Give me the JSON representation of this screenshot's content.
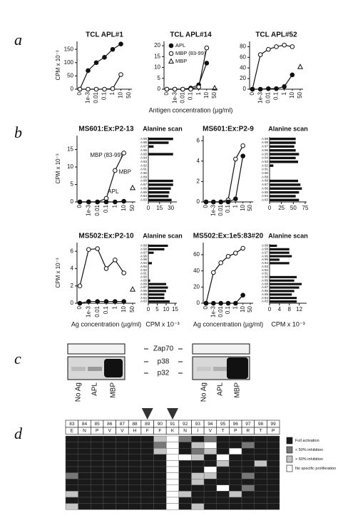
{
  "panel_labels": [
    "a",
    "b",
    "c",
    "d"
  ],
  "chart_data": [
    {
      "type": "line",
      "title": "TCL APL#1",
      "ylabel": "CPM x 10⁻³",
      "categories": [
        "0",
        "1e-3",
        "0.01",
        "0.1",
        "1",
        "10",
        "50"
      ],
      "ylim": [
        0,
        180
      ],
      "yticks": [
        0,
        50,
        100,
        150
      ],
      "series": [
        {
          "marker": "filled-circle",
          "color": "#111111",
          "values": [
            0,
            70,
            100,
            120,
            150,
            170,
            null
          ]
        },
        {
          "marker": "open-circle",
          "color": "#111111",
          "values": [
            0,
            0,
            0,
            0,
            2,
            55,
            null
          ]
        }
      ]
    },
    {
      "type": "line",
      "title": "TCL APL#14",
      "xlabel": "Antigen concentration (µg/ml)",
      "legend": true,
      "categories": [
        "0",
        "1e-3",
        "0.01",
        "0.1",
        "1",
        "10",
        "50"
      ],
      "ylim": [
        0,
        22
      ],
      "yticks": [
        0,
        5,
        10,
        15,
        20
      ],
      "series": [
        {
          "name": "APL",
          "marker": "filled-circle",
          "color": "#111111",
          "values": [
            0,
            0,
            0,
            0.5,
            2,
            12,
            null
          ]
        },
        {
          "name": "MBP (83-99)",
          "marker": "open-circle",
          "color": "#111111",
          "values": [
            0,
            0,
            0,
            0,
            1,
            19,
            null
          ]
        },
        {
          "name": "MBP",
          "marker": "triangle",
          "color": "#111111",
          "values": [
            null,
            null,
            null,
            null,
            null,
            null,
            0.5
          ]
        }
      ]
    },
    {
      "type": "line",
      "title": "TCL APL#52",
      "categories": [
        "0",
        "1e-3",
        "0.01",
        "0.1",
        "1",
        "10",
        "50"
      ],
      "ylim": [
        0,
        90
      ],
      "yticks": [
        0,
        20,
        40,
        60,
        80
      ],
      "series": [
        {
          "marker": "open-circle",
          "color": "#111111",
          "values": [
            0,
            65,
            75,
            80,
            83,
            80,
            null
          ]
        },
        {
          "marker": "filled-circle",
          "color": "#111111",
          "values": [
            0,
            0,
            1,
            1,
            5,
            27,
            null
          ]
        },
        {
          "marker": "triangle",
          "color": "#111111",
          "values": [
            null,
            null,
            null,
            null,
            null,
            null,
            42
          ]
        }
      ]
    },
    {
      "type": "line",
      "title": "MS601:Ex:P2-13",
      "ylabel": "CPM x 10⁻³",
      "annotations": [
        "MBP (83-99)",
        "MBP",
        "APL"
      ],
      "categories": [
        "0",
        "1e-3",
        "0.01",
        "0.1",
        "1",
        "10",
        "50"
      ],
      "ylim": [
        0,
        19
      ],
      "yticks": [
        0,
        5,
        10,
        15
      ],
      "series": [
        {
          "marker": "open-circle",
          "color": "#111111",
          "values": [
            0,
            0,
            0,
            1,
            9,
            14,
            null
          ]
        },
        {
          "marker": "filled-circle",
          "color": "#111111",
          "values": [
            0,
            0,
            0,
            0,
            0,
            0.2,
            null
          ]
        },
        {
          "marker": "triangle",
          "color": "#111111",
          "values": [
            null,
            null,
            null,
            null,
            null,
            null,
            4
          ]
        }
      ]
    },
    {
      "type": "barh",
      "title": "Alanine scan",
      "categories": [
        "A 99",
        "A 98",
        "A 97",
        "A 96",
        "A 95",
        "A 94",
        "A 93",
        "A 92",
        "A 91",
        "A 90",
        "A 89",
        "A 88",
        "A 87",
        "A 86",
        "A 85",
        "A 84",
        "A 83"
      ],
      "color": "#111111",
      "xlim": [
        0,
        38
      ],
      "xticks": [
        0,
        15,
        30
      ],
      "values": [
        33,
        27,
        7,
        0,
        33,
        0,
        0,
        0,
        0,
        0,
        0,
        33,
        33,
        30,
        28,
        27,
        31
      ]
    },
    {
      "type": "line",
      "title": "MS601:Ex:P2-9",
      "categories": [
        "0",
        "1e-3",
        "0.01",
        "0.1",
        "1",
        "10",
        "50"
      ],
      "ylim": [
        0,
        6.5
      ],
      "yticks": [
        0,
        2,
        4,
        6
      ],
      "series": [
        {
          "marker": "open-circle",
          "color": "#111111",
          "values": [
            0,
            0,
            0,
            0.2,
            4.2,
            5.5,
            null
          ]
        },
        {
          "marker": "filled-circle",
          "color": "#111111",
          "values": [
            0,
            0,
            0,
            0,
            0.3,
            4.5,
            null
          ]
        }
      ]
    },
    {
      "type": "barh",
      "title": "Alanine scan",
      "categories": [
        "A 99",
        "A 98",
        "A 97",
        "A 96",
        "A 95",
        "A 94",
        "A 93",
        "A 92",
        "A 91",
        "A 90",
        "A 89",
        "A 88",
        "A 87",
        "A 86",
        "A 85",
        "A 84",
        "A 83"
      ],
      "color": "#111111",
      "xlim": [
        0,
        78
      ],
      "xticks": [
        0,
        25,
        50,
        75
      ],
      "values": [
        55,
        55,
        52,
        55,
        62,
        55,
        60,
        8,
        0,
        0,
        0,
        60,
        65,
        68,
        62,
        55,
        62
      ]
    },
    {
      "type": "line",
      "title": "MS502:Ex:P2-10",
      "ylabel": "CPM x 10⁻³",
      "xlabel": "Ag concentration (µg/ml)",
      "categories": [
        "0",
        "1e-3",
        "0.01",
        "0.1",
        "1",
        "10",
        "50"
      ],
      "ylim": [
        0,
        7
      ],
      "yticks": [
        0,
        2,
        4,
        6
      ],
      "series": [
        {
          "marker": "open-circle",
          "color": "#111111",
          "values": [
            2,
            6.2,
            6.3,
            4,
            5,
            3.5,
            null
          ]
        },
        {
          "marker": "filled-circle",
          "color": "#111111",
          "values": [
            0,
            0.2,
            0.2,
            0.2,
            0.2,
            0.2,
            null
          ]
        },
        {
          "marker": "triangle",
          "color": "#111111",
          "values": [
            null,
            null,
            null,
            null,
            null,
            null,
            1.6
          ]
        }
      ]
    },
    {
      "type": "barh",
      "title": "Alanine scan",
      "xlabel": "CPM x 10⁻³",
      "categories": [
        "A 99",
        "A 98",
        "A 97",
        "A 96",
        "A 95",
        "A 94",
        "A 93",
        "A 92",
        "A 91",
        "A 90",
        "A 89",
        "A 88",
        "A 87",
        "A 86",
        "A 85",
        "A 84",
        "A 83"
      ],
      "color": "#111111",
      "xlim": [
        0,
        16
      ],
      "xticks": [
        0,
        5,
        10,
        15
      ],
      "values": [
        11,
        9,
        3,
        0,
        0,
        2,
        0,
        0,
        0,
        0,
        1,
        10,
        11,
        10,
        9,
        9,
        12
      ]
    },
    {
      "type": "line",
      "title": "MS502:Ex:1e5:83#20",
      "xlabel": "Ag concentration (µg/ml)",
      "categories": [
        "0",
        "1e-3",
        "0.01",
        "0.1",
        "1",
        "10",
        "50"
      ],
      "ylim": [
        0,
        75
      ],
      "yticks": [
        0,
        20,
        40,
        60
      ],
      "series": [
        {
          "marker": "open-circle",
          "color": "#111111",
          "values": [
            0,
            38,
            50,
            58,
            62,
            68,
            null
          ]
        },
        {
          "marker": "filled-circle",
          "color": "#111111",
          "values": [
            0,
            0,
            0,
            0,
            0,
            10,
            null
          ]
        }
      ]
    },
    {
      "type": "barh",
      "title": "Alanine scan",
      "xlabel": "CPM x 10⁻³",
      "categories": [
        "A 99",
        "A 98",
        "A 97",
        "A 96",
        "A 95",
        "A 94",
        "A 93",
        "A 92",
        "A 91",
        "A 90",
        "A 89",
        "A 88",
        "A 87",
        "A 86",
        "A 85",
        "A 84",
        "A 83"
      ],
      "color": "#111111",
      "xlim": [
        0,
        15
      ],
      "xticks": [
        0,
        4,
        8,
        12
      ],
      "values": [
        3,
        8,
        8,
        9,
        4,
        8,
        0,
        0,
        0,
        11,
        10,
        13,
        12,
        10,
        9,
        11,
        11
      ]
    }
  ],
  "gel": {
    "markers": [
      "Zap70",
      "p38",
      "p32"
    ],
    "lanes_left": [
      "No Ag",
      "APL",
      "MBP"
    ],
    "lanes_right": [
      "No Ag",
      "APL",
      "MBP"
    ]
  },
  "grid": {
    "positions": [
      83,
      84,
      85,
      86,
      87,
      88,
      89,
      90,
      91,
      92,
      93,
      94,
      95,
      96,
      97,
      98,
      99
    ],
    "residues": [
      "E",
      "N",
      "P",
      "V",
      "V",
      "H",
      "F",
      "F",
      "K",
      "N",
      "I",
      "V",
      "T",
      "P",
      "R",
      "T",
      "P"
    ],
    "legend": [
      {
        "label": "Full activation",
        "color": "#1a1a1a"
      },
      {
        "label": "< 50% inhibition",
        "color": "#777777"
      },
      {
        "label": "> 50% inhibition",
        "color": "#c4c4c4"
      },
      {
        "label": "No specific proliferation",
        "color": "#ffffff"
      }
    ],
    "rows": [
      [
        3,
        3,
        3,
        3,
        3,
        3,
        3,
        1,
        0,
        2,
        3,
        2,
        3,
        3,
        3,
        3,
        3
      ],
      [
        3,
        3,
        3,
        3,
        3,
        3,
        3,
        2,
        0,
        3,
        1,
        0,
        3,
        3,
        2,
        3,
        3
      ],
      [
        3,
        3,
        3,
        3,
        3,
        3,
        3,
        1,
        0,
        3,
        2,
        1,
        3,
        0,
        3,
        3,
        3
      ],
      [
        3,
        3,
        3,
        3,
        3,
        3,
        3,
        3,
        0,
        0,
        1,
        3,
        0,
        3,
        3,
        3,
        3
      ],
      [
        3,
        3,
        3,
        3,
        3,
        3,
        3,
        3,
        0,
        3,
        3,
        3,
        1,
        3,
        3,
        1,
        3
      ],
      [
        3,
        3,
        3,
        3,
        3,
        3,
        3,
        3,
        0,
        3,
        3,
        0,
        3,
        3,
        3,
        3,
        3
      ],
      [
        2,
        3,
        3,
        3,
        3,
        3,
        3,
        3,
        0,
        3,
        1,
        1,
        3,
        3,
        2,
        3,
        3
      ],
      [
        3,
        3,
        3,
        3,
        3,
        3,
        3,
        3,
        0,
        3,
        1,
        3,
        3,
        3,
        3,
        3,
        3
      ],
      [
        3,
        3,
        3,
        3,
        3,
        3,
        3,
        3,
        0,
        3,
        3,
        3,
        0,
        3,
        2,
        3,
        3
      ],
      [
        1,
        3,
        3,
        3,
        3,
        3,
        3,
        3,
        0,
        1,
        3,
        3,
        3,
        1,
        3,
        3,
        3
      ],
      [
        3,
        3,
        3,
        3,
        3,
        3,
        3,
        3,
        0,
        3,
        3,
        3,
        3,
        3,
        3,
        3,
        3
      ],
      [
        1,
        3,
        3,
        3,
        3,
        3,
        3,
        3,
        0,
        3,
        1,
        3,
        3,
        3,
        3,
        3,
        3
      ]
    ]
  }
}
